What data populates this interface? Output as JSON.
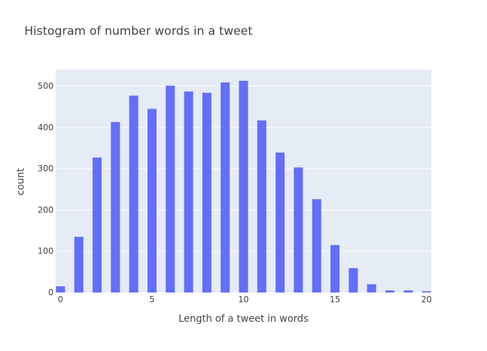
{
  "chart_data": {
    "type": "bar",
    "title": "Histogram of number words in a tweet",
    "xlabel": "Length of a tweet in words",
    "ylabel": "count",
    "x": [
      0,
      1,
      2,
      3,
      4,
      5,
      6,
      7,
      8,
      9,
      10,
      11,
      12,
      13,
      14,
      15,
      16,
      17,
      18,
      19,
      20
    ],
    "values": [
      15,
      135,
      327,
      413,
      477,
      445,
      501,
      487,
      484,
      509,
      513,
      417,
      339,
      303,
      226,
      115,
      59,
      20,
      5,
      5,
      3
    ],
    "xlim": [
      0,
      20
    ],
    "ylim": [
      0,
      540
    ],
    "x_ticks": [
      0,
      5,
      10,
      15,
      20
    ],
    "x_tick_labels": [
      "0",
      "5",
      "10",
      "15",
      "20"
    ],
    "y_ticks": [
      0,
      100,
      200,
      300,
      400,
      500
    ],
    "y_tick_labels": [
      "0",
      "100",
      "200",
      "300",
      "400",
      "500"
    ],
    "grid": true,
    "colors": {
      "bar": "#636efa",
      "plot_bg": "#e5ecf6",
      "grid": "#ffffff",
      "text": "#444444",
      "title": "#444444"
    }
  }
}
